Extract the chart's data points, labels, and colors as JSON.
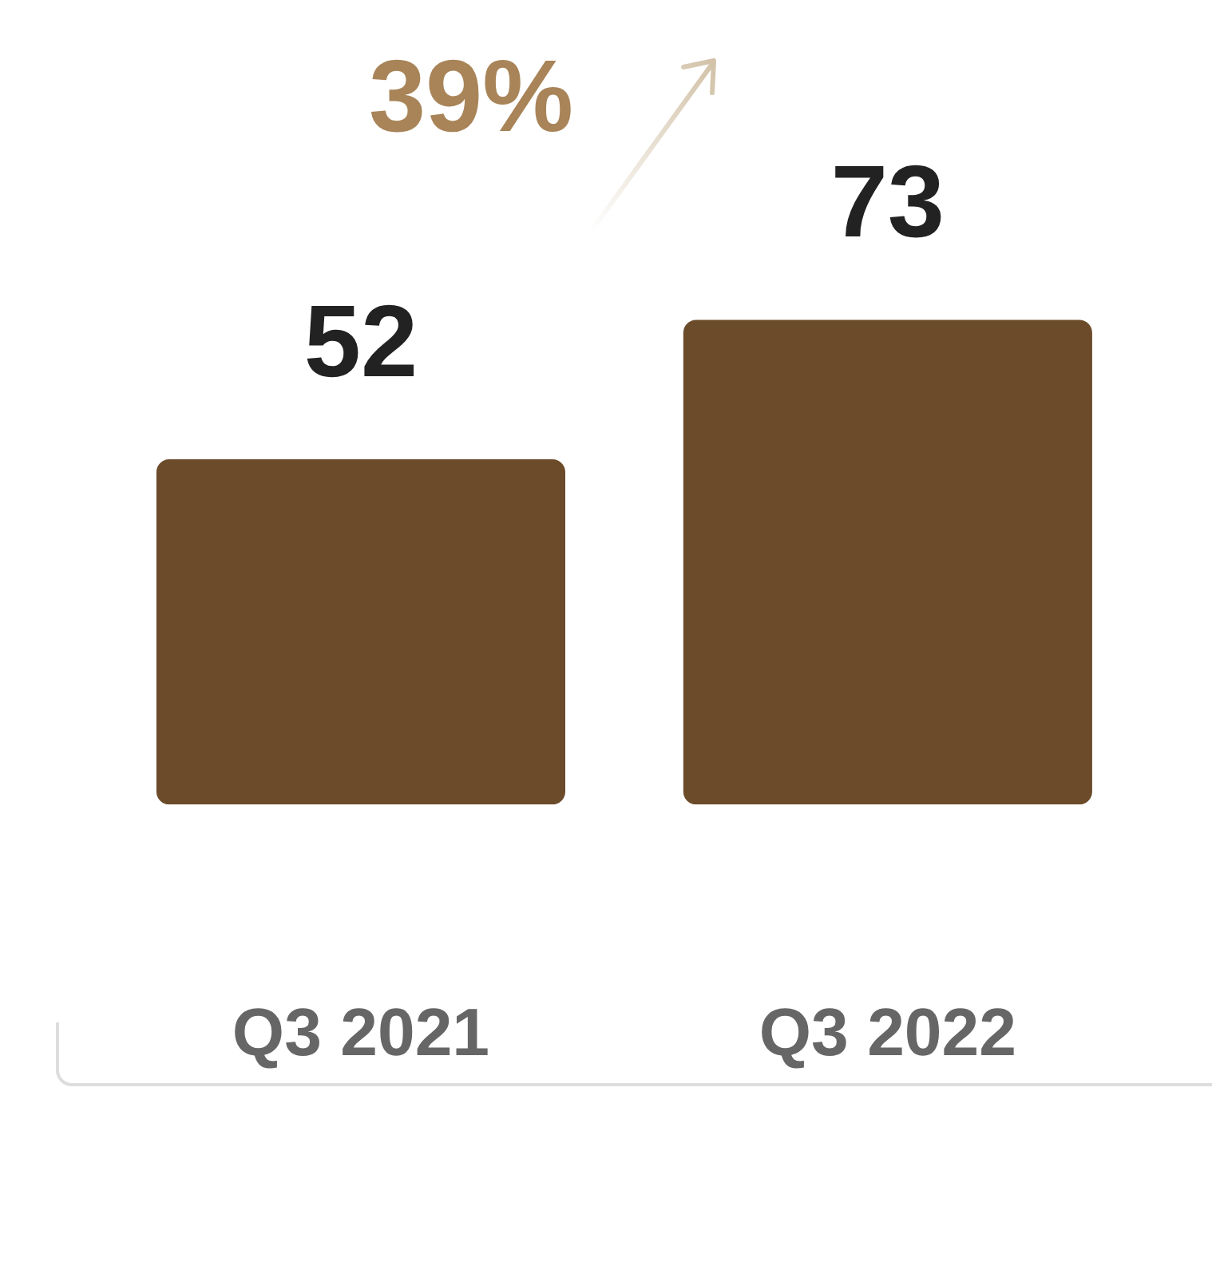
{
  "chart_data": {
    "type": "bar",
    "categories": [
      "Q3 2021",
      "Q3 2022"
    ],
    "values": [
      52,
      73
    ],
    "color": "#6b4b2a",
    "data_labels": true,
    "legend": false,
    "grid": false,
    "annotations": [
      "39%"
    ]
  }
}
